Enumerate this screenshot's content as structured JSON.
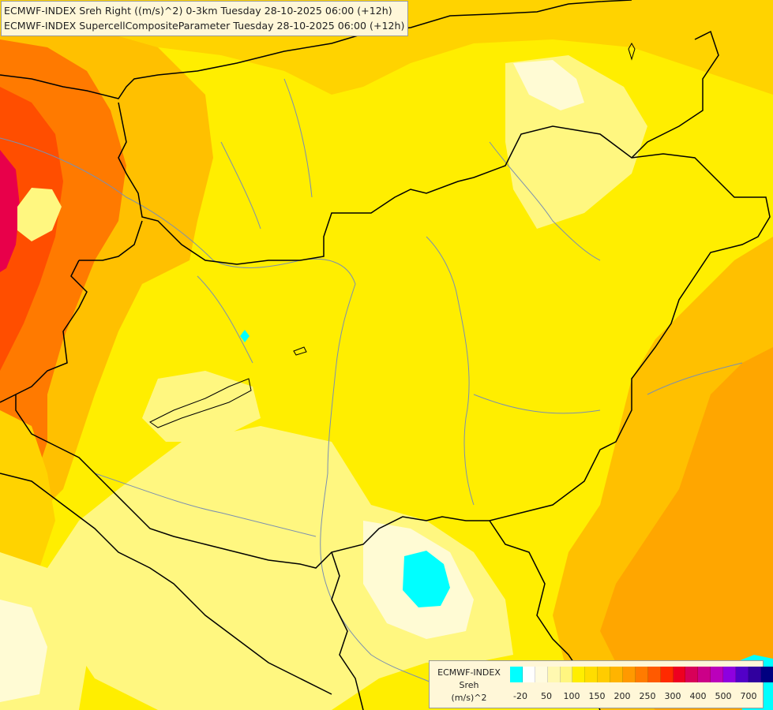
{
  "header": {
    "title_line_1": "ECMWF-INDEX Sreh Right ((m/s)^2) 0-3km Tuesday 28-10-2025 06:00 (+12h)",
    "title_line_2": "ECMWF-INDEX SupercellCompositeParameter Tuesday 28-10-2025 06:00 (+12h)"
  },
  "legend": {
    "label_line_1": "ECMWF-INDEX",
    "label_line_2": "Sreh",
    "label_line_3": "(m/s)^2",
    "colors": [
      "#00ffff",
      "#ffffff",
      "#fffbe0",
      "#fff8b0",
      "#fff680",
      "#ffee00",
      "#ffdd00",
      "#ffcc00",
      "#ffb400",
      "#ff9900",
      "#ff7b00",
      "#ff5a00",
      "#ff2a00",
      "#ee0020",
      "#d80058",
      "#cc0088",
      "#bb00bb",
      "#8e00e0",
      "#5200c8",
      "#30009e",
      "#000080"
    ],
    "ticks": [
      "-20",
      "50",
      "100",
      "150",
      "200",
      "250",
      "300",
      "400",
      "500",
      "700"
    ]
  },
  "map": {
    "field_colors": {
      "background": "#ffee00",
      "orange_light": "#ffd300",
      "orange": "#ffc000",
      "orange_deep": "#ffa600",
      "red_orange": "#ff7a00",
      "red": "#ff4e00",
      "magenta": "#e8004a",
      "pale_yellow": "#fff780",
      "very_pale": "#fffbd4",
      "cyan": "#00ffff"
    },
    "border_color": "#000000",
    "river_color": "#7b8fb0"
  }
}
